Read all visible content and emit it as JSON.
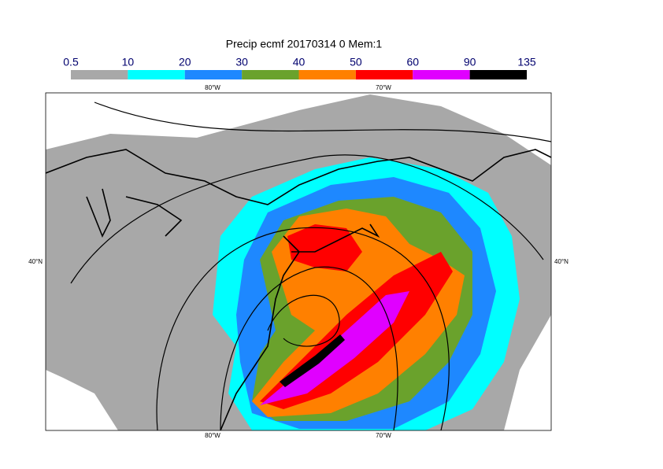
{
  "title": "Precip ecmf 20170314 0 Mem:1",
  "colorbar": {
    "levels": [
      0.5,
      10,
      20,
      30,
      40,
      50,
      60,
      90,
      135
    ],
    "colors": [
      "#a8a8a8",
      "#00ffff",
      "#1e88ff",
      "#6aa22c",
      "#ff8000",
      "#ff0000",
      "#e000ff",
      "#000000"
    ]
  },
  "map": {
    "top_labels": [
      "80°W",
      "70°W"
    ],
    "bottom_labels": [
      "80°W",
      "70°W"
    ],
    "left_label": "40°N",
    "right_label": "40°N"
  }
}
